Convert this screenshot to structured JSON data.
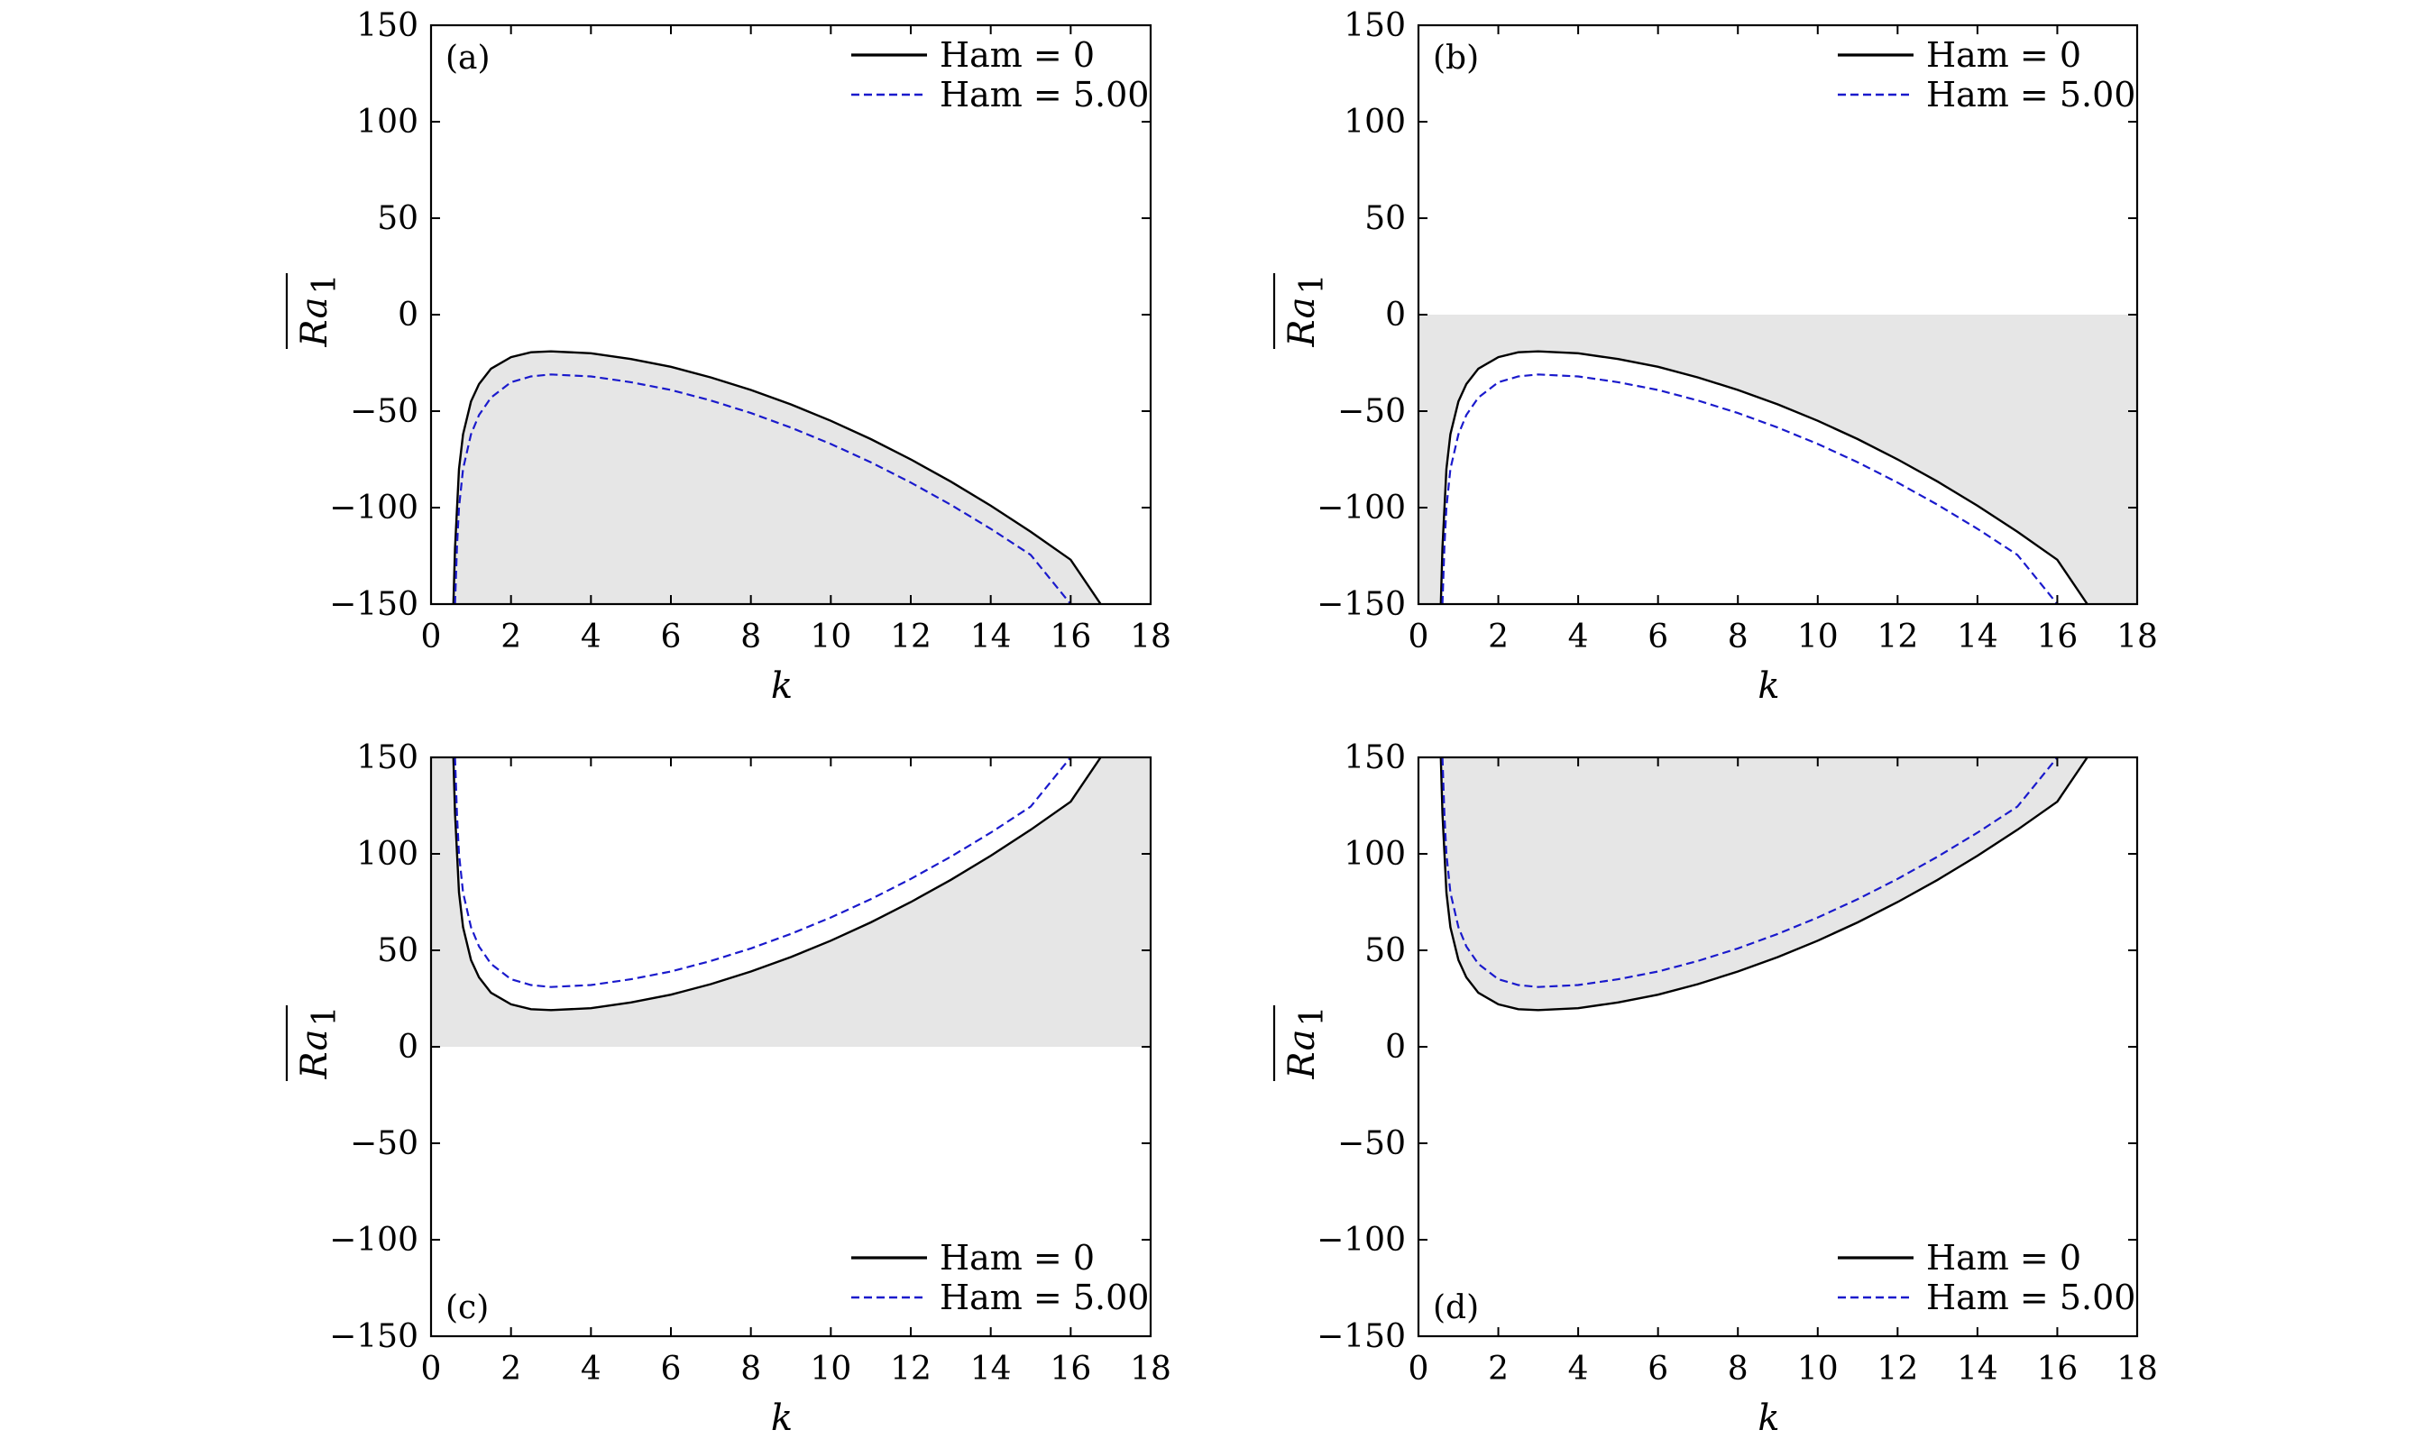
{
  "colors": {
    "ham0": "#000000",
    "ham5": "#1a1acc",
    "shade": "#e6e6e6",
    "frame": "#000000"
  },
  "shared": {
    "xlabel": "k",
    "ylabel": "Ra",
    "ylabel_sub": "1",
    "xlim": [
      0,
      18
    ],
    "ylim": [
      -150,
      150
    ],
    "xticks": [
      "0",
      "2",
      "4",
      "6",
      "8",
      "10",
      "12",
      "14",
      "16",
      "18"
    ],
    "yticks": [
      "150",
      "100",
      "50",
      "0",
      "−50",
      "−100",
      "−150"
    ],
    "legend_entries": [
      "Ham = 0",
      "Ham = 5.00"
    ]
  },
  "chart_data": [
    {
      "type": "line",
      "panel_label": "(a)",
      "shading": "below Ham = 0 curve",
      "legend_position": "top-right",
      "xlabel": "k",
      "ylabel": "Ra_1 (overlined)",
      "xlim": [
        0,
        18
      ],
      "ylim": [
        -150,
        150
      ],
      "series": [
        {
          "name": "Ham = 0",
          "style": "solid",
          "x": [
            0.56,
            0.6,
            0.7,
            0.8,
            1.0,
            1.2,
            1.5,
            2.0,
            2.5,
            3.0,
            4.0,
            5.0,
            6.0,
            7.0,
            8.0,
            9.0,
            10.0,
            11.0,
            12.0,
            13.0,
            14.0,
            15.0,
            16.0,
            16.75
          ],
          "y": [
            -150,
            -121,
            -80,
            -62,
            -45,
            -36,
            -28,
            -22,
            -19.5,
            -19,
            -20,
            -23,
            -27,
            -32.5,
            -39,
            -46.5,
            -55,
            -64.5,
            -75,
            -86.5,
            -99,
            -112.5,
            -127,
            -150
          ]
        },
        {
          "name": "Ham = 5.00",
          "style": "dashed",
          "x": [
            0.6,
            0.65,
            0.7,
            0.8,
            1.0,
            1.2,
            1.5,
            2.0,
            2.5,
            3.0,
            4.0,
            5.0,
            6.0,
            7.0,
            8.0,
            9.0,
            10.0,
            11.0,
            12.0,
            13.0,
            14.0,
            15.0,
            16.0
          ],
          "y": [
            -150,
            -120,
            -100,
            -80,
            -62,
            -52,
            -43,
            -35,
            -32,
            -31,
            -32,
            -35,
            -39,
            -44.5,
            -51,
            -58.5,
            -67,
            -76.5,
            -87,
            -98.5,
            -111,
            -124.5,
            -150
          ]
        }
      ]
    },
    {
      "type": "line",
      "panel_label": "(b)",
      "shading": "between Ham = 0 curve and Ra = 0",
      "legend_position": "top-right",
      "xlabel": "k",
      "ylabel": "Ra_1 (overlined)",
      "xlim": [
        0,
        18
      ],
      "ylim": [
        -150,
        150
      ],
      "series": [
        {
          "name": "Ham = 0",
          "style": "solid",
          "x": [
            0.56,
            0.6,
            0.7,
            0.8,
            1.0,
            1.2,
            1.5,
            2.0,
            2.5,
            3.0,
            4.0,
            5.0,
            6.0,
            7.0,
            8.0,
            9.0,
            10.0,
            11.0,
            12.0,
            13.0,
            14.0,
            15.0,
            16.0,
            16.75
          ],
          "y": [
            -150,
            -121,
            -80,
            -62,
            -45,
            -36,
            -28,
            -22,
            -19.5,
            -19,
            -20,
            -23,
            -27,
            -32.5,
            -39,
            -46.5,
            -55,
            -64.5,
            -75,
            -86.5,
            -99,
            -112.5,
            -127,
            -150
          ]
        },
        {
          "name": "Ham = 5.00",
          "style": "dashed",
          "x": [
            0.6,
            0.65,
            0.7,
            0.8,
            1.0,
            1.2,
            1.5,
            2.0,
            2.5,
            3.0,
            4.0,
            5.0,
            6.0,
            7.0,
            8.0,
            9.0,
            10.0,
            11.0,
            12.0,
            13.0,
            14.0,
            15.0,
            16.0
          ],
          "y": [
            -150,
            -120,
            -100,
            -80,
            -62,
            -52,
            -43,
            -35,
            -32,
            -31,
            -32,
            -35,
            -39,
            -44.5,
            -51,
            -58.5,
            -67,
            -76.5,
            -87,
            -98.5,
            -111,
            -124.5,
            -150
          ]
        }
      ]
    },
    {
      "type": "line",
      "panel_label": "(c)",
      "shading": "between Ra = 0 and Ham = 0 curve",
      "legend_position": "bottom-right",
      "xlabel": "k",
      "ylabel": "Ra_1 (overlined)",
      "xlim": [
        0,
        18
      ],
      "ylim": [
        -150,
        150
      ],
      "series": [
        {
          "name": "Ham = 0",
          "style": "solid",
          "x": [
            0.56,
            0.6,
            0.7,
            0.8,
            1.0,
            1.2,
            1.5,
            2.0,
            2.5,
            3.0,
            4.0,
            5.0,
            6.0,
            7.0,
            8.0,
            9.0,
            10.0,
            11.0,
            12.0,
            13.0,
            14.0,
            15.0,
            16.0,
            16.75
          ],
          "y": [
            150,
            121,
            80,
            62,
            45,
            36,
            28,
            22,
            19.5,
            19,
            20,
            23,
            27,
            32.5,
            39,
            46.5,
            55,
            64.5,
            75,
            86.5,
            99,
            112.5,
            127,
            150
          ]
        },
        {
          "name": "Ham = 5.00",
          "style": "dashed",
          "x": [
            0.6,
            0.65,
            0.7,
            0.8,
            1.0,
            1.2,
            1.5,
            2.0,
            2.5,
            3.0,
            4.0,
            5.0,
            6.0,
            7.0,
            8.0,
            9.0,
            10.0,
            11.0,
            12.0,
            13.0,
            14.0,
            15.0,
            16.0
          ],
          "y": [
            150,
            120,
            100,
            80,
            62,
            52,
            43,
            35,
            32,
            31,
            32,
            35,
            39,
            44.5,
            51,
            58.5,
            67,
            76.5,
            87,
            98.5,
            111,
            124.5,
            150
          ]
        }
      ]
    },
    {
      "type": "line",
      "panel_label": "(d)",
      "shading": "above Ham = 0 curve",
      "legend_position": "bottom-right",
      "xlabel": "k",
      "ylabel": "Ra_1 (overlined)",
      "xlim": [
        0,
        18
      ],
      "ylim": [
        -150,
        150
      ],
      "series": [
        {
          "name": "Ham = 0",
          "style": "solid",
          "x": [
            0.56,
            0.6,
            0.7,
            0.8,
            1.0,
            1.2,
            1.5,
            2.0,
            2.5,
            3.0,
            4.0,
            5.0,
            6.0,
            7.0,
            8.0,
            9.0,
            10.0,
            11.0,
            12.0,
            13.0,
            14.0,
            15.0,
            16.0,
            16.75
          ],
          "y": [
            150,
            121,
            80,
            62,
            45,
            36,
            28,
            22,
            19.5,
            19,
            20,
            23,
            27,
            32.5,
            39,
            46.5,
            55,
            64.5,
            75,
            86.5,
            99,
            112.5,
            127,
            150
          ]
        },
        {
          "name": "Ham = 5.00",
          "style": "dashed",
          "x": [
            0.6,
            0.65,
            0.7,
            0.8,
            1.0,
            1.2,
            1.5,
            2.0,
            2.5,
            3.0,
            4.0,
            5.0,
            6.0,
            7.0,
            8.0,
            9.0,
            10.0,
            11.0,
            12.0,
            13.0,
            14.0,
            15.0,
            16.0
          ],
          "y": [
            150,
            120,
            100,
            80,
            62,
            52,
            43,
            35,
            32,
            31,
            32,
            35,
            39,
            44.5,
            51,
            58.5,
            67,
            76.5,
            87,
            98.5,
            111,
            124.5,
            150
          ]
        }
      ]
    }
  ]
}
